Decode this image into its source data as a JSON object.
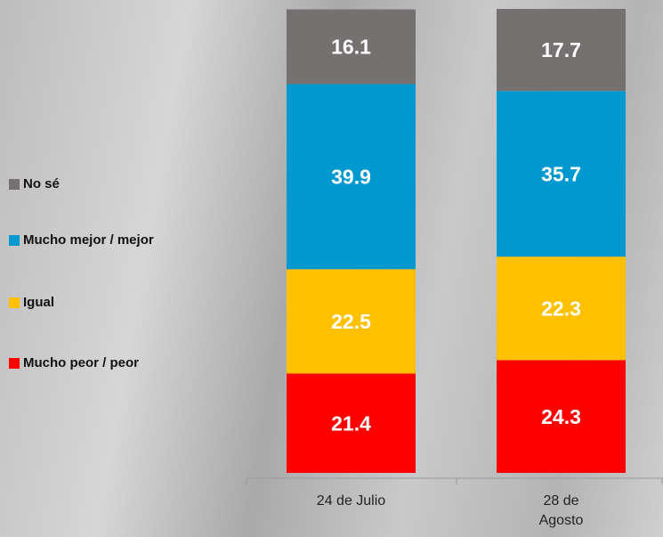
{
  "chart_data": {
    "type": "stacked_bar",
    "categories": [
      "24 de Julio",
      "28 de Agosto"
    ],
    "series": [
      {
        "name": "No sé",
        "color": "#767171",
        "values": [
          16.1,
          17.7
        ]
      },
      {
        "name": "Mucho mejor / mejor",
        "color": "#0099cf",
        "values": [
          39.9,
          35.7
        ]
      },
      {
        "name": "Igual",
        "color": "#ffc000",
        "values": [
          22.5,
          22.3
        ]
      },
      {
        "name": "Mucho peor / peor",
        "color": "#ff0000",
        "values": [
          21.4,
          24.3
        ]
      }
    ],
    "ylim": [
      0,
      100
    ],
    "legend": "left"
  }
}
